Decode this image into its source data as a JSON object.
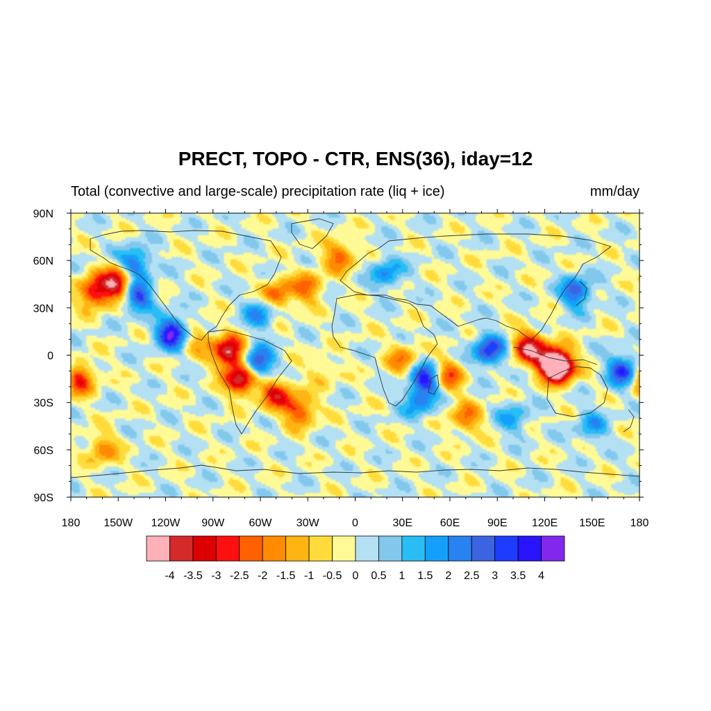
{
  "chart_data": {
    "type": "heatmap",
    "title": "PRECT, TOPO - CTR, ENS(36), iday=12",
    "subtitle_left": "Total (convective and large-scale) precipitation rate (liq + ice)",
    "subtitle_right": "mm/day",
    "projection": "cylindrical-equidistant",
    "lon_range": [
      -180,
      180
    ],
    "lat_range": [
      -90,
      90
    ],
    "lon_ticks": [
      {
        "value": -180,
        "label": "180"
      },
      {
        "value": -150,
        "label": "150W"
      },
      {
        "value": -120,
        "label": "120W"
      },
      {
        "value": -90,
        "label": "90W"
      },
      {
        "value": -60,
        "label": "60W"
      },
      {
        "value": -30,
        "label": "30W"
      },
      {
        "value": 0,
        "label": "0"
      },
      {
        "value": 30,
        "label": "30E"
      },
      {
        "value": 60,
        "label": "60E"
      },
      {
        "value": 90,
        "label": "90E"
      },
      {
        "value": 120,
        "label": "120E"
      },
      {
        "value": 150,
        "label": "150E"
      },
      {
        "value": 180,
        "label": "180"
      }
    ],
    "lat_ticks": [
      {
        "value": 90,
        "label": "90N"
      },
      {
        "value": 60,
        "label": "60N"
      },
      {
        "value": 30,
        "label": "30N"
      },
      {
        "value": 0,
        "label": "0"
      },
      {
        "value": -30,
        "label": "30S"
      },
      {
        "value": -60,
        "label": "60S"
      },
      {
        "value": -90,
        "label": "90S"
      }
    ],
    "levels": [
      -4,
      -3.5,
      -3,
      -2.5,
      -2,
      -1.5,
      -1,
      -0.5,
      0,
      0.5,
      1,
      1.5,
      2,
      2.5,
      3,
      3.5,
      4
    ],
    "level_labels": [
      "-4",
      "-3.5",
      "-3",
      "-2.5",
      "-2",
      "-1.5",
      "-1",
      "-0.5",
      "0",
      "0.5",
      "1",
      "1.5",
      "2",
      "2.5",
      "3",
      "3.5",
      "4"
    ],
    "colors": [
      "#ffb0b8",
      "#d42a2a",
      "#dc0000",
      "#ff1010",
      "#ff6000",
      "#ff8c00",
      "#ffb414",
      "#ffdc3c",
      "#fffa96",
      "#b4e0f4",
      "#82c8ec",
      "#28bef5",
      "#14a0fa",
      "#2882f0",
      "#3c64e1",
      "#1e3cff",
      "#2814ff",
      "#8228ec"
    ],
    "field": [
      {
        "lon": -165,
        "lat": 40,
        "value": -3.2
      },
      {
        "lon": -150,
        "lat": 46,
        "value": -4.2
      },
      {
        "lon": -140,
        "lat": 58,
        "value": 2.8
      },
      {
        "lon": -138,
        "lat": 38,
        "value": 3.4
      },
      {
        "lon": -116,
        "lat": 14,
        "value": 4.2
      },
      {
        "lon": -100,
        "lat": 10,
        "value": -1.4
      },
      {
        "lon": -80,
        "lat": 2,
        "value": -4.2
      },
      {
        "lon": -72,
        "lat": -15,
        "value": -4.3
      },
      {
        "lon": -62,
        "lat": -5,
        "value": 3.6
      },
      {
        "lon": -50,
        "lat": -25,
        "value": -2.8
      },
      {
        "lon": -35,
        "lat": -35,
        "value": -2.6
      },
      {
        "lon": -50,
        "lat": 38,
        "value": -2.4
      },
      {
        "lon": -30,
        "lat": 43,
        "value": -2.0
      },
      {
        "lon": -60,
        "lat": 27,
        "value": 2.2
      },
      {
        "lon": -10,
        "lat": 63,
        "value": -2.2
      },
      {
        "lon": 20,
        "lat": 52,
        "value": 2.0
      },
      {
        "lon": 30,
        "lat": -3,
        "value": -1.8
      },
      {
        "lon": 45,
        "lat": -15,
        "value": 3.8
      },
      {
        "lon": 58,
        "lat": -13,
        "value": -2.6
      },
      {
        "lon": 40,
        "lat": -30,
        "value": 2.0
      },
      {
        "lon": 70,
        "lat": -40,
        "value": -2.0
      },
      {
        "lon": 85,
        "lat": 3,
        "value": 3.4
      },
      {
        "lon": 110,
        "lat": 5,
        "value": -3.8
      },
      {
        "lon": 125,
        "lat": -5,
        "value": -4.2
      },
      {
        "lon": 130,
        "lat": -8,
        "value": -3.6
      },
      {
        "lon": 140,
        "lat": 40,
        "value": 2.8
      },
      {
        "lon": 170,
        "lat": -10,
        "value": 3.4
      },
      {
        "lon": -160,
        "lat": -60,
        "value": -1.8
      },
      {
        "lon": -175,
        "lat": -15,
        "value": -3.0
      },
      {
        "lon": 100,
        "lat": -40,
        "value": 1.6
      },
      {
        "lon": 150,
        "lat": -45,
        "value": 1.6
      },
      {
        "lon": -20,
        "lat": -10,
        "value": -0.8
      }
    ]
  }
}
